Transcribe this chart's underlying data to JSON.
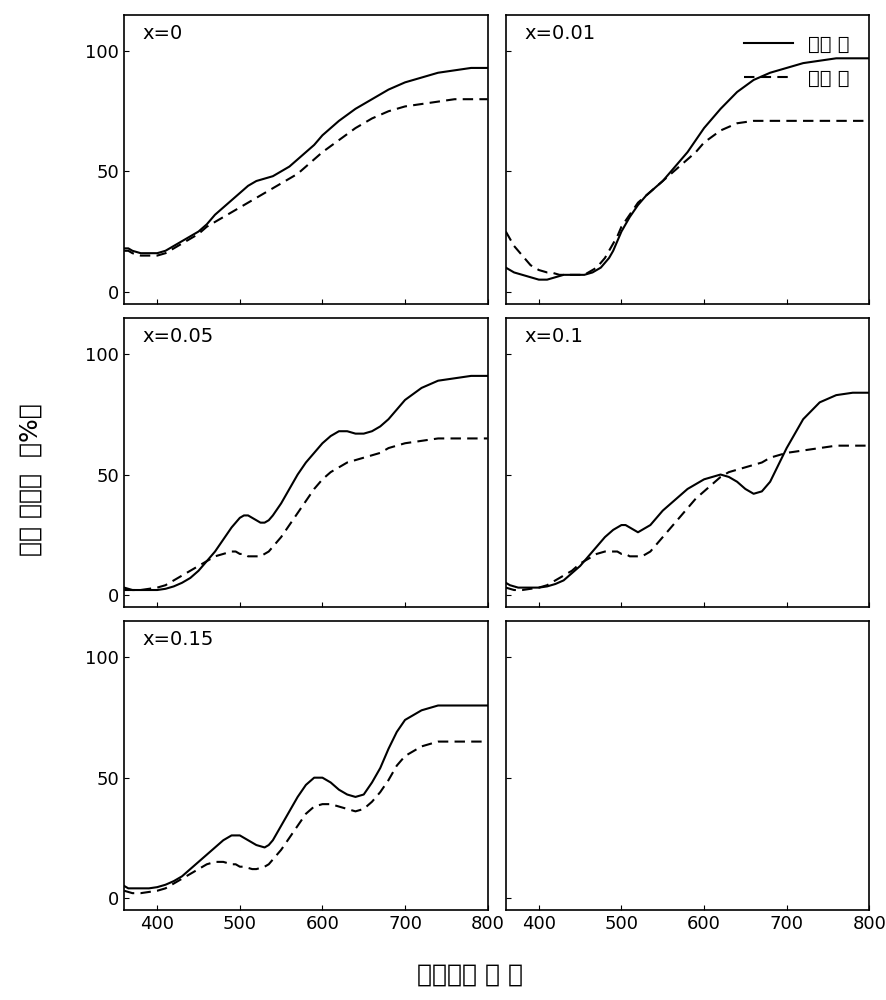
{
  "panels": [
    {
      "label": "x=0",
      "solid": {
        "x": [
          360,
          365,
          370,
          375,
          380,
          385,
          390,
          395,
          400,
          405,
          410,
          415,
          420,
          425,
          430,
          435,
          440,
          445,
          450,
          460,
          470,
          480,
          490,
          500,
          510,
          520,
          530,
          540,
          550,
          560,
          570,
          580,
          590,
          600,
          620,
          640,
          660,
          680,
          700,
          720,
          740,
          760,
          780,
          800
        ],
        "y": [
          18,
          18,
          17,
          16.5,
          16,
          16,
          16,
          16,
          16,
          16.5,
          17,
          18,
          19,
          20,
          21,
          22,
          23,
          24,
          25,
          28,
          32,
          35,
          38,
          41,
          44,
          46,
          47,
          48,
          50,
          52,
          55,
          58,
          61,
          65,
          71,
          76,
          80,
          84,
          87,
          89,
          91,
          92,
          93,
          93
        ]
      },
      "dashed": {
        "x": [
          360,
          365,
          370,
          375,
          380,
          385,
          390,
          395,
          400,
          405,
          410,
          415,
          420,
          425,
          430,
          435,
          440,
          445,
          450,
          460,
          470,
          480,
          490,
          500,
          510,
          520,
          530,
          540,
          550,
          560,
          570,
          580,
          590,
          600,
          620,
          640,
          660,
          680,
          700,
          720,
          740,
          760,
          780,
          800
        ],
        "y": [
          17,
          17,
          16,
          15.5,
          15,
          15,
          15,
          15,
          15,
          15.5,
          16,
          17,
          18,
          19,
          20,
          21,
          22,
          23,
          24,
          27,
          29,
          31,
          33,
          35,
          37,
          39,
          41,
          43,
          45,
          47,
          49,
          52,
          55,
          58,
          63,
          68,
          72,
          75,
          77,
          78,
          79,
          80,
          80,
          80
        ]
      }
    },
    {
      "label": "x=0.01",
      "solid": {
        "x": [
          360,
          365,
          370,
          375,
          380,
          385,
          390,
          395,
          400,
          405,
          410,
          415,
          420,
          425,
          430,
          435,
          440,
          445,
          450,
          455,
          460,
          465,
          470,
          475,
          480,
          485,
          490,
          495,
          500,
          510,
          520,
          530,
          540,
          550,
          560,
          570,
          580,
          590,
          600,
          620,
          640,
          660,
          680,
          700,
          720,
          740,
          760,
          780,
          800
        ],
        "y": [
          10,
          9,
          8,
          7.5,
          7,
          6.5,
          6,
          5.5,
          5,
          5,
          5,
          5.5,
          6,
          6.5,
          7,
          7,
          7,
          7,
          7,
          7,
          7.5,
          8,
          9,
          10,
          12,
          14,
          17,
          21,
          25,
          31,
          36,
          40,
          43,
          46,
          50,
          54,
          58,
          63,
          68,
          76,
          83,
          88,
          91,
          93,
          95,
          96,
          97,
          97,
          97
        ]
      },
      "dashed": {
        "x": [
          360,
          365,
          370,
          375,
          380,
          385,
          390,
          395,
          400,
          405,
          410,
          415,
          420,
          425,
          430,
          435,
          440,
          445,
          450,
          455,
          460,
          465,
          470,
          475,
          480,
          485,
          490,
          495,
          500,
          510,
          520,
          530,
          540,
          550,
          560,
          570,
          580,
          590,
          600,
          620,
          640,
          660,
          680,
          700,
          720,
          740,
          760,
          780,
          800
        ],
        "y": [
          25,
          22,
          19,
          17,
          15,
          13,
          11,
          10,
          9,
          8.5,
          8,
          8,
          7.5,
          7,
          7,
          7,
          7,
          7,
          7,
          7,
          8,
          9,
          10,
          12,
          14,
          17,
          20,
          23,
          27,
          32,
          37,
          40,
          43,
          46,
          49,
          52,
          55,
          58,
          62,
          67,
          70,
          71,
          71,
          71,
          71,
          71,
          71,
          71,
          71
        ]
      }
    },
    {
      "label": "x=0.05",
      "solid": {
        "x": [
          360,
          365,
          370,
          375,
          380,
          390,
          400,
          410,
          420,
          430,
          440,
          450,
          460,
          470,
          480,
          490,
          495,
          500,
          505,
          510,
          515,
          520,
          525,
          530,
          535,
          540,
          550,
          560,
          570,
          580,
          590,
          600,
          610,
          620,
          630,
          640,
          650,
          660,
          670,
          680,
          690,
          700,
          720,
          740,
          760,
          780,
          800
        ],
        "y": [
          3,
          2.5,
          2,
          2,
          2,
          2,
          2,
          2.5,
          3.5,
          5,
          7,
          10,
          14,
          18,
          23,
          28,
          30,
          32,
          33,
          33,
          32,
          31,
          30,
          30,
          31,
          33,
          38,
          44,
          50,
          55,
          59,
          63,
          66,
          68,
          68,
          67,
          67,
          68,
          70,
          73,
          77,
          81,
          86,
          89,
          90,
          91,
          91
        ]
      },
      "dashed": {
        "x": [
          360,
          365,
          370,
          375,
          380,
          390,
          400,
          410,
          420,
          430,
          440,
          450,
          460,
          470,
          480,
          490,
          495,
          500,
          505,
          510,
          515,
          520,
          525,
          530,
          535,
          540,
          550,
          560,
          570,
          580,
          590,
          600,
          610,
          620,
          630,
          640,
          650,
          660,
          670,
          680,
          690,
          700,
          720,
          740,
          760,
          780,
          800
        ],
        "y": [
          2,
          2,
          2,
          2,
          2,
          2.5,
          3,
          4,
          6,
          8,
          10,
          12,
          14,
          16,
          17,
          18,
          18,
          17,
          17,
          16,
          16,
          16,
          16,
          17,
          18,
          20,
          24,
          29,
          34,
          39,
          44,
          48,
          51,
          53,
          55,
          56,
          57,
          58,
          59,
          61,
          62,
          63,
          64,
          65,
          65,
          65,
          65
        ]
      }
    },
    {
      "label": "x=0.1",
      "solid": {
        "x": [
          360,
          365,
          370,
          375,
          380,
          390,
          400,
          410,
          420,
          430,
          440,
          450,
          460,
          470,
          480,
          490,
          495,
          500,
          505,
          510,
          515,
          520,
          525,
          530,
          535,
          540,
          550,
          560,
          570,
          580,
          590,
          600,
          610,
          620,
          630,
          640,
          650,
          660,
          670,
          680,
          690,
          700,
          720,
          740,
          760,
          780,
          800
        ],
        "y": [
          5,
          4,
          3.5,
          3,
          3,
          3,
          3,
          3.5,
          4.5,
          6,
          9,
          12,
          16,
          20,
          24,
          27,
          28,
          29,
          29,
          28,
          27,
          26,
          27,
          28,
          29,
          31,
          35,
          38,
          41,
          44,
          46,
          48,
          49,
          50,
          49,
          47,
          44,
          42,
          43,
          47,
          54,
          61,
          73,
          80,
          83,
          84,
          84
        ]
      },
      "dashed": {
        "x": [
          360,
          365,
          370,
          375,
          380,
          390,
          400,
          410,
          420,
          430,
          440,
          450,
          460,
          470,
          480,
          490,
          495,
          500,
          505,
          510,
          515,
          520,
          525,
          530,
          535,
          540,
          550,
          560,
          570,
          580,
          590,
          600,
          610,
          620,
          630,
          640,
          650,
          660,
          670,
          680,
          690,
          700,
          720,
          740,
          760,
          780,
          800
        ],
        "y": [
          3,
          2.5,
          2,
          2,
          2,
          2.5,
          3,
          4,
          6,
          8,
          10,
          13,
          15,
          17,
          18,
          18,
          18,
          17,
          17,
          16,
          16,
          16,
          16,
          17,
          18,
          20,
          24,
          28,
          32,
          36,
          40,
          43,
          46,
          49,
          51,
          52,
          53,
          54,
          55,
          57,
          58,
          59,
          60,
          61,
          62,
          62,
          62
        ]
      }
    },
    {
      "label": "x=0.15",
      "solid": {
        "x": [
          360,
          365,
          370,
          375,
          380,
          390,
          400,
          410,
          420,
          430,
          440,
          450,
          460,
          470,
          480,
          490,
          495,
          500,
          505,
          510,
          515,
          520,
          525,
          530,
          535,
          540,
          550,
          560,
          570,
          580,
          590,
          600,
          610,
          620,
          630,
          640,
          650,
          660,
          670,
          680,
          690,
          700,
          720,
          740,
          760,
          780,
          800
        ],
        "y": [
          5,
          4,
          4,
          4,
          4,
          4,
          4.5,
          5.5,
          7,
          9,
          12,
          15,
          18,
          21,
          24,
          26,
          26,
          26,
          25,
          24,
          23,
          22,
          21.5,
          21,
          22,
          24,
          30,
          36,
          42,
          47,
          50,
          50,
          48,
          45,
          43,
          42,
          43,
          48,
          54,
          62,
          69,
          74,
          78,
          80,
          80,
          80,
          80
        ]
      },
      "dashed": {
        "x": [
          360,
          365,
          370,
          375,
          380,
          390,
          400,
          410,
          420,
          430,
          440,
          450,
          460,
          470,
          480,
          490,
          495,
          500,
          505,
          510,
          515,
          520,
          525,
          530,
          535,
          540,
          550,
          560,
          570,
          580,
          590,
          600,
          610,
          620,
          630,
          640,
          650,
          660,
          670,
          680,
          690,
          700,
          720,
          740,
          760,
          780,
          800
        ],
        "y": [
          3,
          2.5,
          2,
          2,
          2,
          2.5,
          3,
          4,
          6,
          8,
          10,
          12,
          14,
          15,
          15,
          14,
          14,
          13,
          13,
          12.5,
          12,
          12,
          12.5,
          13,
          14,
          16,
          20,
          25,
          30,
          35,
          38,
          39,
          39,
          38,
          37,
          36,
          37,
          40,
          44,
          49,
          55,
          59,
          63,
          65,
          65,
          65,
          65
        ]
      }
    }
  ],
  "xlim": [
    360,
    800
  ],
  "ylim": [
    -5,
    115
  ],
  "yticks": [
    0,
    50,
    100
  ],
  "xticks": [
    400,
    500,
    600,
    700,
    800
  ],
  "xlabel": "波长（纳 米 ）",
  "ylabel": "相对 反射率  （%）",
  "legend_solid": "辐照 前",
  "legend_dashed": "辐照 后",
  "line_color": "#000000",
  "line_width": 1.5,
  "font_size_label": 18,
  "font_size_tick": 13,
  "font_size_legend": 14,
  "font_size_annot": 14
}
